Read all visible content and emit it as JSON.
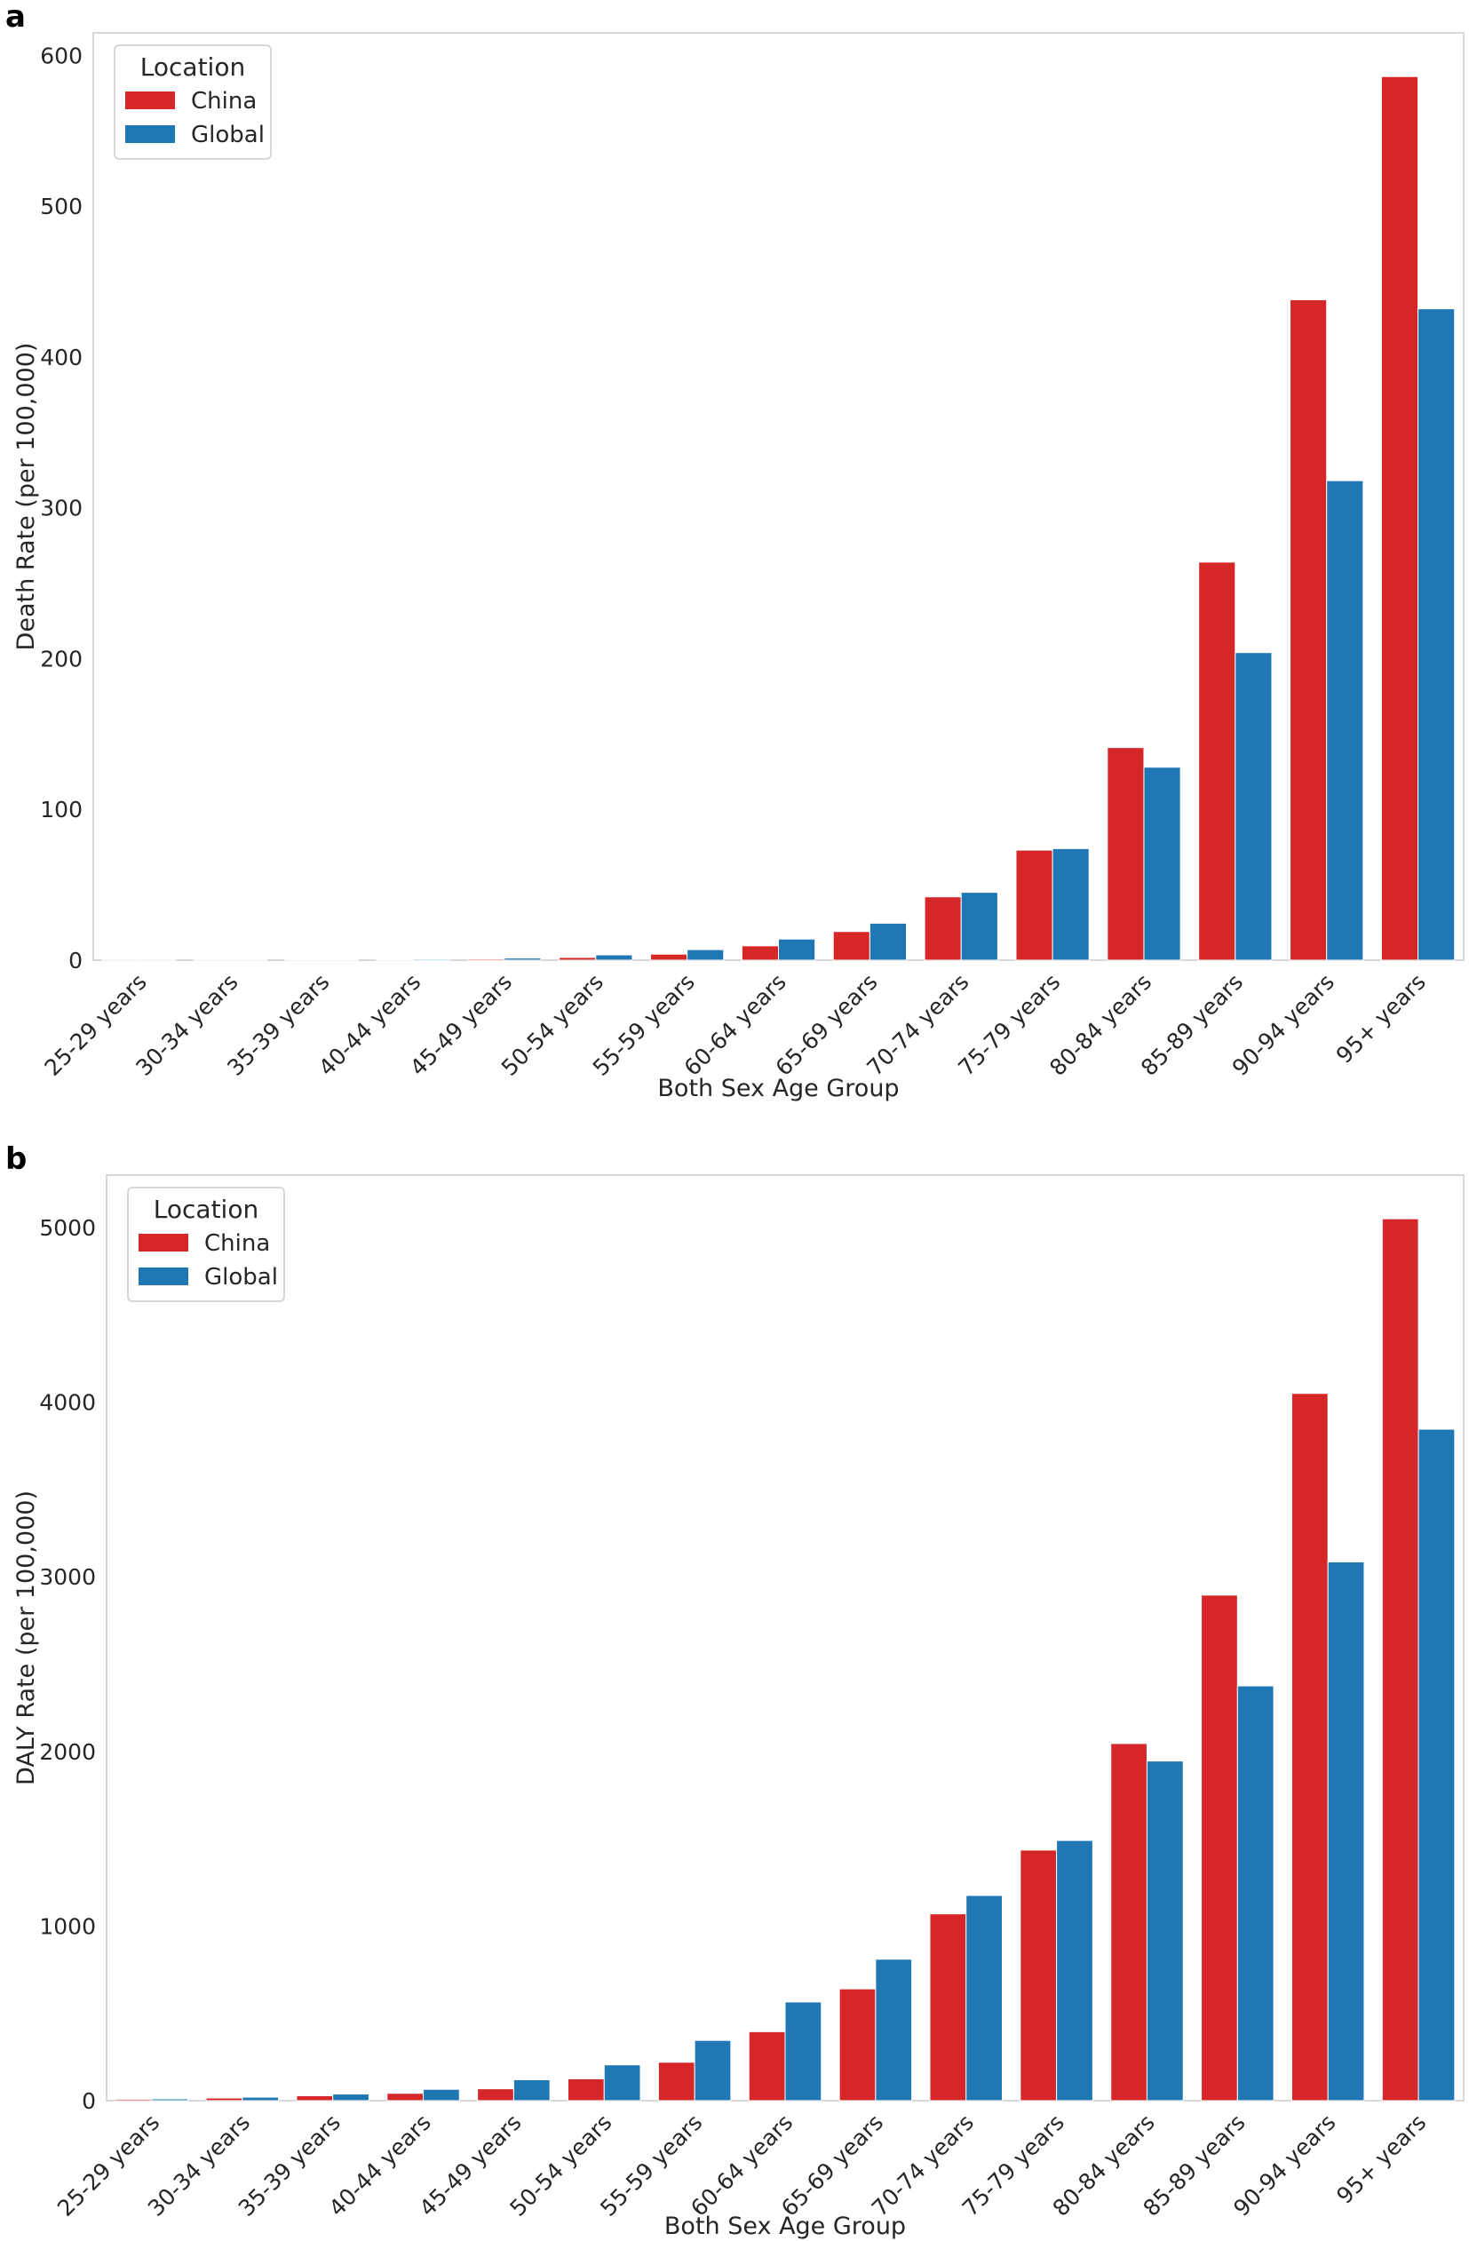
{
  "colors": {
    "China": "#d62728",
    "Global": "#1f77b4"
  },
  "chart_data": [
    {
      "panel": "a",
      "type": "bar",
      "title": "",
      "xlabel": "Both Sex Age Group",
      "ylabel": "Death Rate (per 100,000)",
      "ylim": [
        0,
        615
      ],
      "yticks": [
        0,
        100,
        200,
        300,
        400,
        500,
        600
      ],
      "grid": false,
      "legend_title": "Location",
      "legend_position": "top-left",
      "categories": [
        "25-29 years",
        "30-34 years",
        "35-39 years",
        "40-44 years",
        "45-49 years",
        "50-54 years",
        "55-59 years",
        "60-64 years",
        "65-69 years",
        "70-74 years",
        "75-79 years",
        "80-84 years",
        "85-89 years",
        "90-94 years",
        "95+ years"
      ],
      "series": [
        {
          "name": "China",
          "values": [
            0.1,
            0.2,
            0.3,
            0.5,
            0.8,
            1.8,
            4,
            9.5,
            19,
            42,
            73,
            141,
            264,
            438,
            586
          ]
        },
        {
          "name": "Global",
          "values": [
            0.1,
            0.2,
            0.4,
            0.7,
            1.4,
            3.5,
            7,
            14,
            24.5,
            45,
            74,
            128,
            204,
            318,
            432
          ]
        }
      ]
    },
    {
      "panel": "b",
      "type": "bar",
      "title": "",
      "xlabel": "Both Sex Age Group",
      "ylabel": "DALY Rate (per 100,000)",
      "ylim": [
        0,
        5300
      ],
      "yticks": [
        0,
        1000,
        2000,
        3000,
        4000,
        5000
      ],
      "grid": false,
      "legend_title": "Location",
      "legend_position": "top-left",
      "categories": [
        "25-29 years",
        "30-34 years",
        "35-39 years",
        "40-44 years",
        "45-49 years",
        "50-54 years",
        "55-59 years",
        "60-64 years",
        "65-69 years",
        "70-74 years",
        "75-79 years",
        "80-84 years",
        "85-89 years",
        "90-94 years",
        "95+ years"
      ],
      "series": [
        {
          "name": "China",
          "values": [
            8,
            15,
            28,
            42,
            68,
            125,
            220,
            395,
            640,
            1070,
            1435,
            2045,
            2895,
            4050,
            5050
          ]
        },
        {
          "name": "Global",
          "values": [
            10,
            20,
            38,
            65,
            120,
            205,
            345,
            565,
            810,
            1175,
            1490,
            1945,
            2375,
            3085,
            3845
          ]
        }
      ]
    }
  ]
}
